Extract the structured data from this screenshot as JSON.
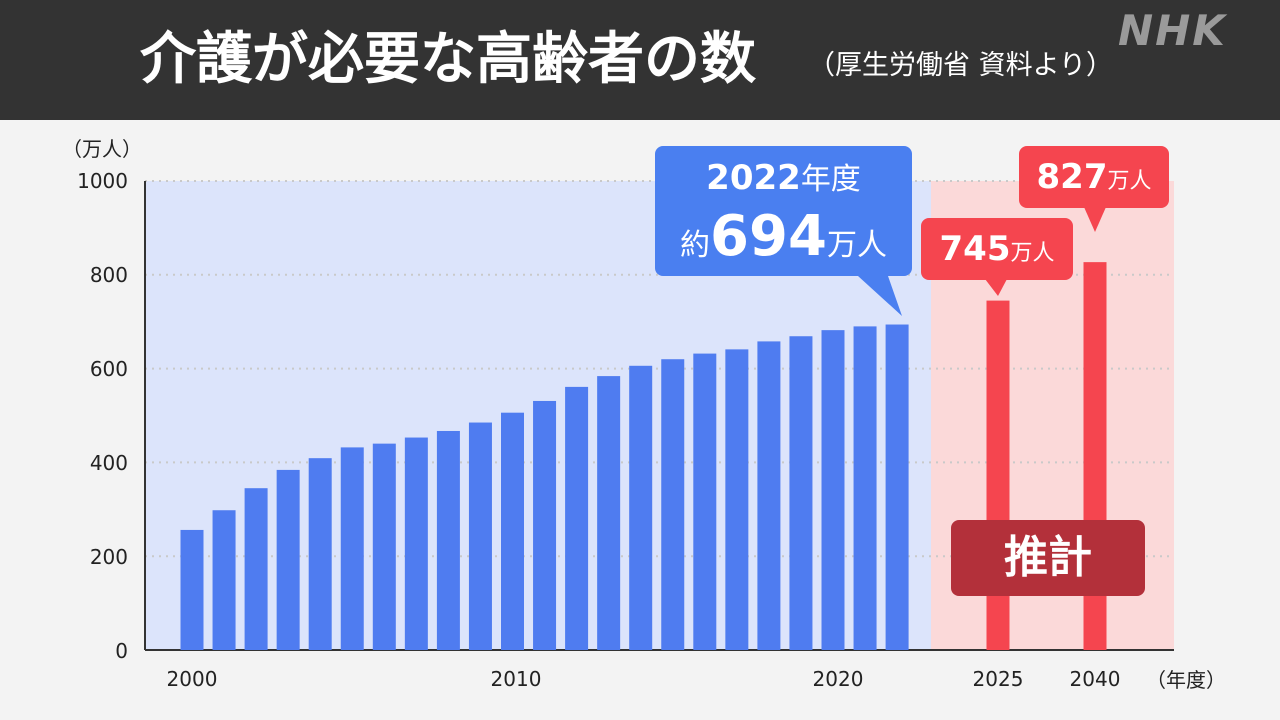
{
  "header": {
    "title": "介護が必要な高齢者の数",
    "subtitle": "（厚生労働省 資料より）",
    "logo": "NHK"
  },
  "colors": {
    "header_bg": "#333333",
    "actual_bar": "#4f7cf0",
    "actual_bg": "#dce4fb",
    "estimate_bar": "#f5454f",
    "estimate_bg": "#fbd9d9",
    "estimate_badge": "#b3303a"
  },
  "chart_data": {
    "type": "bar",
    "y_unit": "（万人）",
    "x_unit": "（年度）",
    "ylim": [
      0,
      1000
    ],
    "yticks": [
      "0",
      "200",
      "400",
      "600",
      "800",
      "1000"
    ],
    "grid": true,
    "series": [
      {
        "x": [
          2000,
          2001,
          2002,
          2003,
          2004,
          2005,
          2006,
          2007,
          2008,
          2009,
          2010,
          2011,
          2012,
          2013,
          2014,
          2015,
          2016,
          2017,
          2018,
          2019,
          2020,
          2021,
          2022
        ],
        "values": [
          256,
          298,
          345,
          384,
          409,
          432,
          440,
          453,
          467,
          485,
          506,
          531,
          561,
          584,
          606,
          620,
          632,
          641,
          658,
          669,
          682,
          690,
          694
        ]
      },
      {
        "x": [
          2025,
          2040
        ],
        "values": [
          745,
          827
        ]
      }
    ],
    "xtick_labels": [
      "2000",
      "2010",
      "2020",
      "2025",
      "2040"
    ],
    "annotations": [
      {
        "year_label": "2022",
        "year_suffix": "年度",
        "prefix": "約",
        "value": "694",
        "unit": "万人"
      },
      {
        "value": "745",
        "unit": "万人"
      },
      {
        "value": "827",
        "unit": "万人"
      }
    ],
    "estimate_label": "推計"
  }
}
